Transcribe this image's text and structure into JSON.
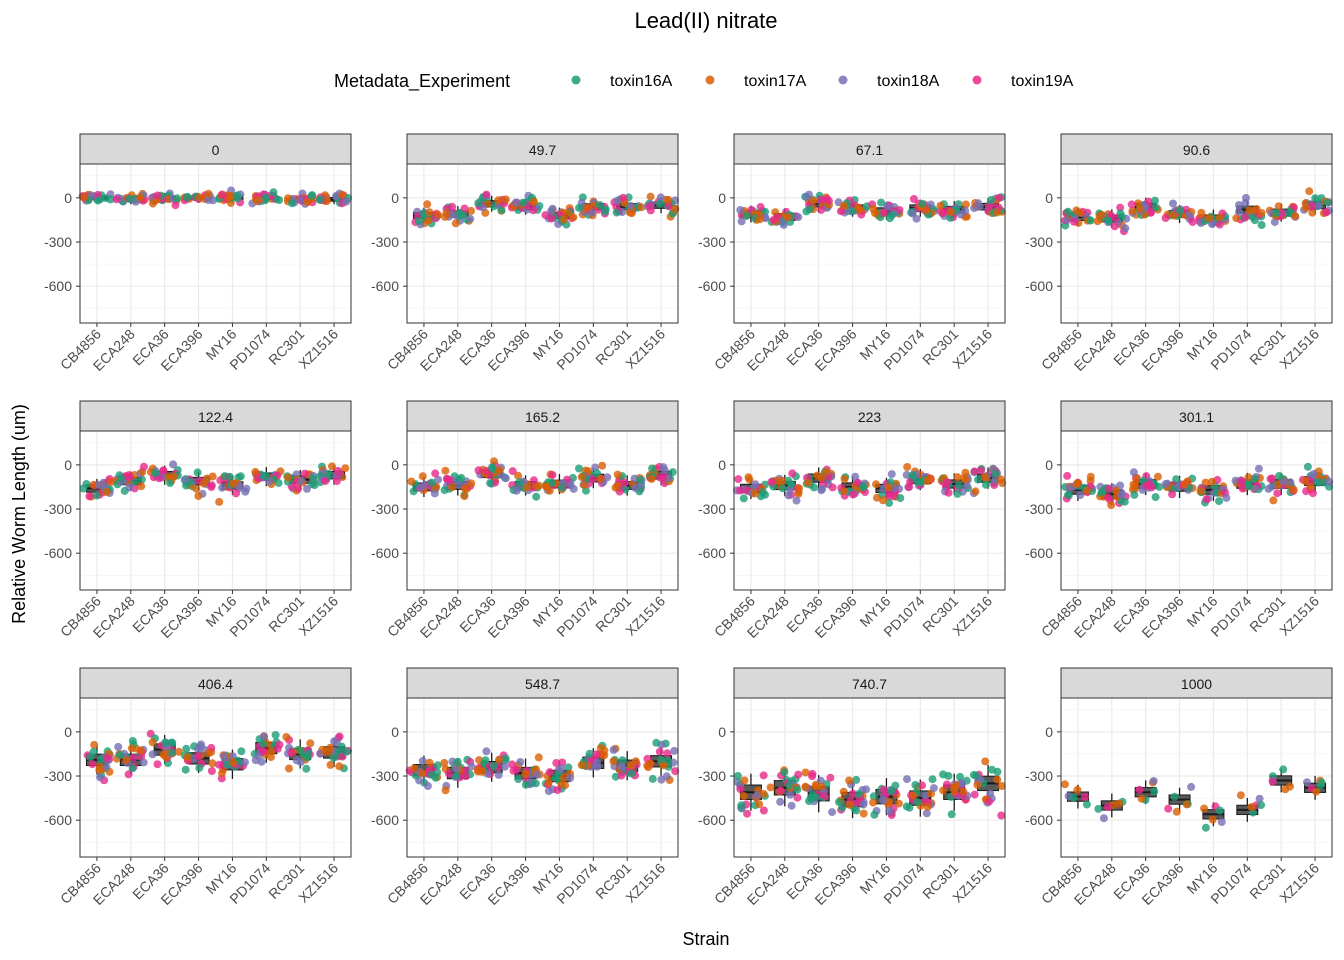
{
  "chart_data": {
    "type": "scatter",
    "subtype": "faceted jitter + boxplot",
    "title": "Lead(II) nitrate",
    "xlabel": "Strain",
    "ylabel": "Relative Worm Length (um)",
    "legend": {
      "title": "Metadata_Experiment",
      "placement": "top",
      "entries": [
        {
          "name": "toxin16A",
          "color": "#1b9e77"
        },
        {
          "name": "toxin17A",
          "color": "#d95f02"
        },
        {
          "name": "toxin18A",
          "color": "#7570b3"
        },
        {
          "name": "toxin19A",
          "color": "#e7298a"
        }
      ]
    },
    "categories": [
      "CB4856",
      "ECA248",
      "ECA36",
      "ECA396",
      "MY16",
      "PD1074",
      "RC301",
      "XZ1516"
    ],
    "ylim": [
      -850,
      230
    ],
    "yticks": [
      0,
      -300,
      -600
    ],
    "ytick_labels": [
      "0",
      "-300",
      "-600"
    ],
    "grid": true,
    "colors": {
      "strip_fill": "#d9d9d9",
      "strip_border": "#333333",
      "box_fill": "#595959",
      "grid": "#ebebeb"
    },
    "panels": [
      {
        "label": "0",
        "medians": [
          0,
          -10,
          0,
          0,
          0,
          0,
          -10,
          -10
        ]
      },
      {
        "label": "49.7",
        "medians": [
          -120,
          -110,
          -40,
          -60,
          -120,
          -60,
          -60,
          -50
        ]
      },
      {
        "label": "67.1",
        "medians": [
          -110,
          -130,
          -40,
          -70,
          -90,
          -70,
          -80,
          -60
        ]
      },
      {
        "label": "90.6",
        "medians": [
          -130,
          -140,
          -60,
          -110,
          -140,
          -80,
          -100,
          -50
        ]
      },
      {
        "label": "122.4",
        "medians": [
          -160,
          -110,
          -70,
          -110,
          -140,
          -80,
          -100,
          -70
        ]
      },
      {
        "label": "165.2",
        "medians": [
          -150,
          -140,
          -60,
          -140,
          -130,
          -90,
          -140,
          -70
        ]
      },
      {
        "label": "223",
        "medians": [
          -160,
          -140,
          -90,
          -150,
          -160,
          -100,
          -130,
          -90
        ]
      },
      {
        "label": "301.1",
        "medians": [
          -170,
          -200,
          -130,
          -150,
          -170,
          -130,
          -130,
          -110
        ]
      },
      {
        "label": "406.4",
        "medians": [
          -190,
          -190,
          -120,
          -180,
          -220,
          -110,
          -150,
          -140
        ]
      },
      {
        "label": "548.7",
        "medians": [
          -260,
          -280,
          -240,
          -280,
          -300,
          -210,
          -230,
          -200
        ]
      },
      {
        "label": "740.7",
        "medians": [
          -410,
          -380,
          -420,
          -460,
          -440,
          -450,
          -410,
          -350
        ]
      },
      {
        "label": "1000",
        "medians": [
          -440,
          -500,
          -410,
          -460,
          -560,
          -530,
          -330,
          -380
        ]
      }
    ]
  }
}
